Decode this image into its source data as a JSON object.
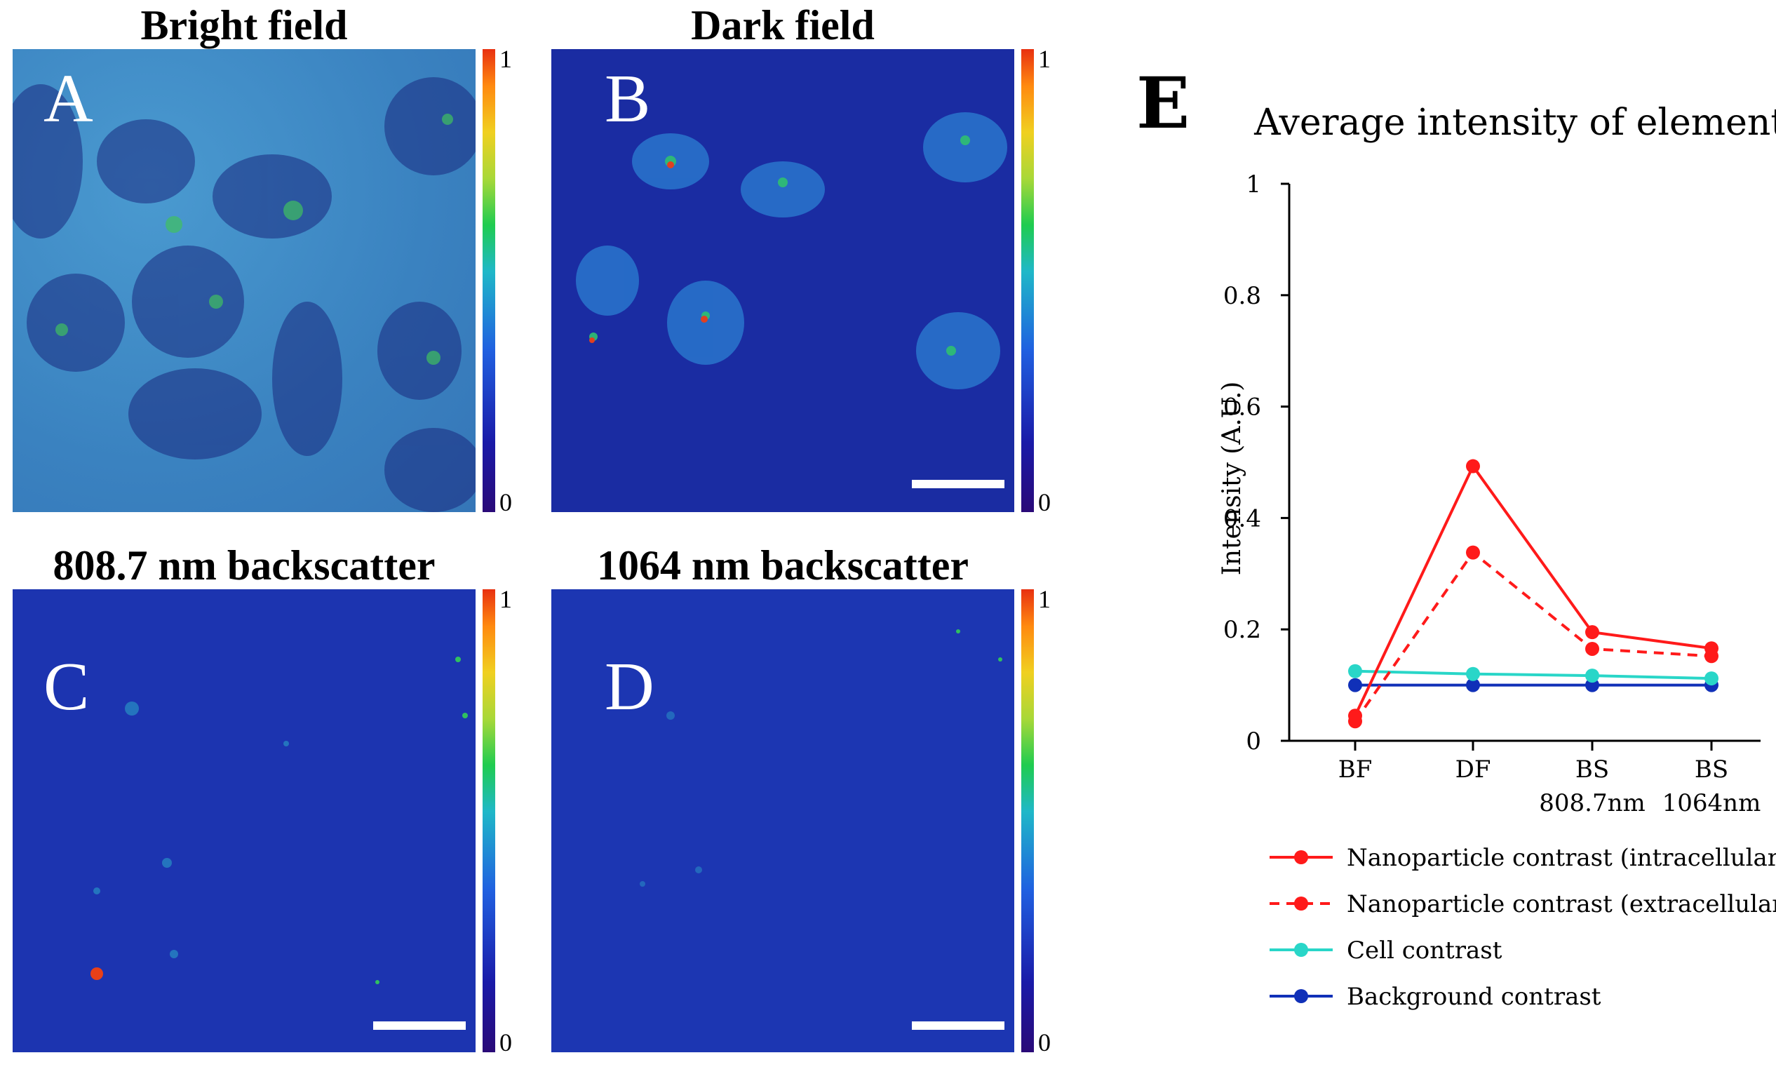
{
  "panels": [
    {
      "letter": "A",
      "title": "Bright field",
      "cbar_max": "1",
      "cbar_min": "0"
    },
    {
      "letter": "B",
      "title": "Dark field",
      "cbar_max": "1",
      "cbar_min": "0"
    },
    {
      "letter": "C",
      "title": "808.7 nm backscatter",
      "cbar_max": "1",
      "cbar_min": "0"
    },
    {
      "letter": "D",
      "title": "1064 nm backscatter",
      "cbar_max": "1",
      "cbar_min": "0"
    }
  ],
  "colors": {
    "red": "#ff1a1a",
    "cyan": "#29d6c8",
    "blue": "#1030b8",
    "image_bg_dark": "#1a2aa0",
    "image_bg_bright": "#3a8ec8"
  },
  "chart_data": {
    "panel_letter": "E",
    "type": "line",
    "title": "Average intensity of elements",
    "xlabel": "",
    "ylabel": "Intensity (A.U.)",
    "categories": [
      [
        "BF"
      ],
      [
        "DF"
      ],
      [
        "BS",
        "808.7nm"
      ],
      [
        "BS",
        "1064nm"
      ]
    ],
    "ylim": [
      0,
      1
    ],
    "yticks": [
      0,
      0.2,
      0.4,
      0.6,
      0.8,
      1
    ],
    "ytick_labels": [
      "0",
      "0.2",
      "0.4",
      "0.6",
      "0.8",
      "1"
    ],
    "series": [
      {
        "name": "Nanoparticle contrast (intracellular)",
        "color": "#ff1a1a",
        "dashed": false,
        "values": [
          0.045,
          0.493,
          0.195,
          0.166
        ]
      },
      {
        "name": "Nanoparticle contrast (extracellular)",
        "color": "#ff1a1a",
        "dashed": true,
        "values": [
          0.035,
          0.338,
          0.165,
          0.152
        ]
      },
      {
        "name": "Cell contrast",
        "color": "#29d6c8",
        "dashed": false,
        "values": [
          0.125,
          0.12,
          0.117,
          0.112
        ]
      },
      {
        "name": "Background contrast",
        "color": "#1030b8",
        "dashed": false,
        "values": [
          0.1,
          0.1,
          0.1,
          0.1
        ]
      }
    ],
    "legend_position": "bottom"
  }
}
